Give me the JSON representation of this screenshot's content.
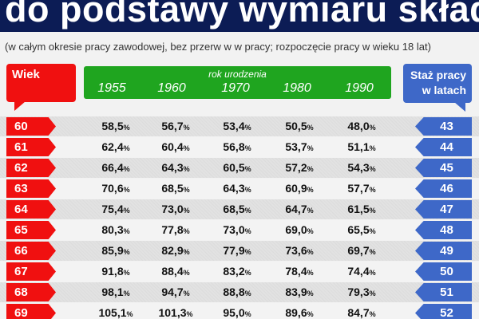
{
  "title": "do podstawy wymiaru składki",
  "subtitle": "(w całym okresie pracy zawodowej, bez przerw w w pracy; rozpoczęcie pracy w wieku 18 lat)",
  "header": {
    "age_label": "Wiek",
    "birth_year_label": "rok urodzenia",
    "years": [
      "1955",
      "1960",
      "1970",
      "1980",
      "1990"
    ],
    "tenure_label_1": "Staż pracy",
    "tenure_label_2": "w latach"
  },
  "percent_sign": "%",
  "colors": {
    "title_band": "#0c1c55",
    "age": "#f01010",
    "years": "#1fa51f",
    "tenure": "#3e68c8"
  },
  "rows": [
    {
      "age": "60",
      "values": [
        "58,5",
        "56,7",
        "53,4",
        "50,5",
        "48,0"
      ],
      "tenure": "43"
    },
    {
      "age": "61",
      "values": [
        "62,4",
        "60,4",
        "56,8",
        "53,7",
        "51,1"
      ],
      "tenure": "44"
    },
    {
      "age": "62",
      "values": [
        "66,4",
        "64,3",
        "60,5",
        "57,2",
        "54,3"
      ],
      "tenure": "45"
    },
    {
      "age": "63",
      "values": [
        "70,6",
        "68,5",
        "64,3",
        "60,9",
        "57,7"
      ],
      "tenure": "46"
    },
    {
      "age": "64",
      "values": [
        "75,4",
        "73,0",
        "68,5",
        "64,7",
        "61,5"
      ],
      "tenure": "47"
    },
    {
      "age": "65",
      "values": [
        "80,3",
        "77,8",
        "73,0",
        "69,0",
        "65,5"
      ],
      "tenure": "48"
    },
    {
      "age": "66",
      "values": [
        "85,9",
        "82,9",
        "77,9",
        "73,6",
        "69,7"
      ],
      "tenure": "49"
    },
    {
      "age": "67",
      "values": [
        "91,8",
        "88,4",
        "83,2",
        "78,4",
        "74,4"
      ],
      "tenure": "50"
    },
    {
      "age": "68",
      "values": [
        "98,1",
        "94,7",
        "88,8",
        "83,9",
        "79,3"
      ],
      "tenure": "51"
    },
    {
      "age": "69",
      "values": [
        "105,1",
        "101,3",
        "95,0",
        "89,6",
        "84,7"
      ],
      "tenure": "52"
    }
  ]
}
